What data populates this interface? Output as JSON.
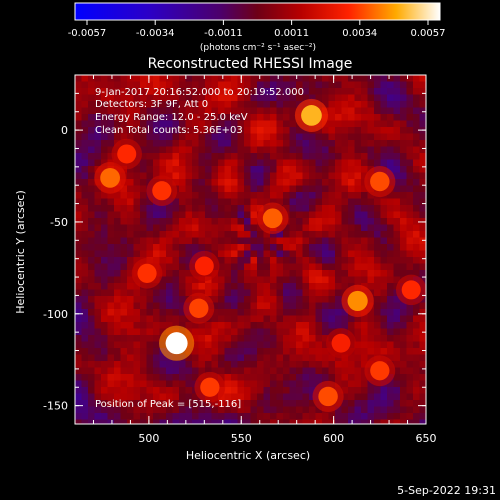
{
  "chart_data": {
    "type": "heatmap",
    "title": "Reconstructed RHESSI Image",
    "xlabel": "Heliocentric X (arcsec)",
    "ylabel": "Heliocentric Y (arcsec)",
    "xlim": [
      460,
      650
    ],
    "ylim": [
      -160,
      30
    ],
    "x_ticks": [
      "500",
      "550",
      "600",
      "650"
    ],
    "y_ticks": [
      "0",
      "-50",
      "-100",
      "-150"
    ],
    "colorbar": {
      "min": -0.0057,
      "max": 0.0057,
      "ticks": [
        "-0.0057",
        "-0.0034",
        "-0.0011",
        "0.0011",
        "0.0034",
        "0.0057"
      ],
      "units_label": "(photons cm⁻² s⁻¹ asec⁻²)"
    },
    "annotations": [
      "9-Jan-2017 20:16:52.000 to 20:19:52.000",
      "Detectors: 3F 9F, Att 0",
      "Energy Range: 12.0 - 25.0 keV",
      "Clean    Total counts: 5.36E+03",
      "Position of Peak = [515,-116]"
    ],
    "peaks": [
      {
        "x": 515,
        "y": -116,
        "value": 0.0057
      },
      {
        "x": 588,
        "y": 8,
        "value": 0.0045
      },
      {
        "x": 613,
        "y": -93,
        "value": 0.004
      },
      {
        "x": 479,
        "y": -26,
        "value": 0.0036
      },
      {
        "x": 567,
        "y": -48,
        "value": 0.0035
      },
      {
        "x": 625,
        "y": -28,
        "value": 0.0033
      },
      {
        "x": 597,
        "y": -145,
        "value": 0.0033
      },
      {
        "x": 533,
        "y": -140,
        "value": 0.0031
      },
      {
        "x": 527,
        "y": -97,
        "value": 0.0032
      },
      {
        "x": 625,
        "y": -131,
        "value": 0.0031
      },
      {
        "x": 507,
        "y": -33,
        "value": 0.003
      },
      {
        "x": 499,
        "y": -78,
        "value": 0.003
      },
      {
        "x": 488,
        "y": -13,
        "value": 0.0029
      },
      {
        "x": 530,
        "y": -74,
        "value": 0.0028
      },
      {
        "x": 642,
        "y": -87,
        "value": 0.0029
      },
      {
        "x": 604,
        "y": -116,
        "value": 0.0027
      }
    ]
  },
  "footer": {
    "date": "5-Sep-2022 19:31"
  }
}
